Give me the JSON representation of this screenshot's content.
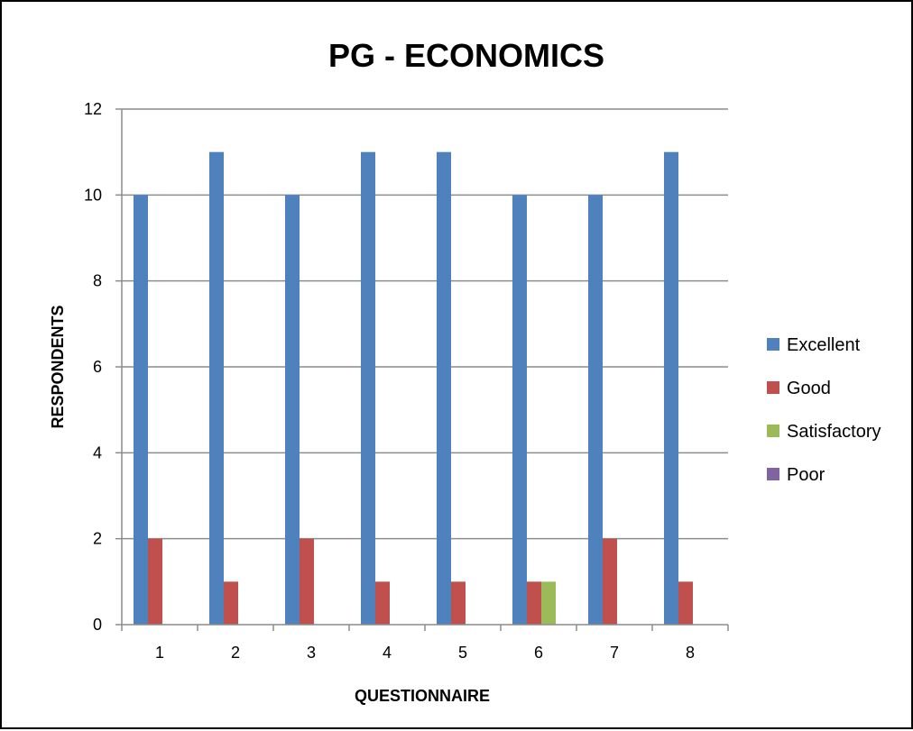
{
  "chart_data": {
    "type": "bar",
    "title": "PG - ECONOMICS",
    "xlabel": "QUESTIONNAIRE",
    "ylabel": "RESPONDENTS",
    "categories": [
      "1",
      "2",
      "3",
      "4",
      "5",
      "6",
      "7",
      "8"
    ],
    "series": [
      {
        "name": "Excellent",
        "color": "#4F81BD",
        "values": [
          10,
          11,
          10,
          11,
          11,
          10,
          10,
          11
        ]
      },
      {
        "name": "Good",
        "color": "#C0504D",
        "values": [
          2,
          1,
          2,
          1,
          1,
          1,
          2,
          1
        ]
      },
      {
        "name": "Satisfactory",
        "color": "#9BBB59",
        "values": [
          0,
          0,
          0,
          0,
          0,
          1,
          0,
          0
        ]
      },
      {
        "name": "Poor",
        "color": "#8064A2",
        "values": [
          0,
          0,
          0,
          0,
          0,
          0,
          0,
          0
        ]
      }
    ],
    "ylim": [
      0,
      12
    ],
    "yticks": [
      0,
      2,
      4,
      6,
      8,
      10,
      12
    ],
    "grid": true,
    "legend": "right"
  }
}
